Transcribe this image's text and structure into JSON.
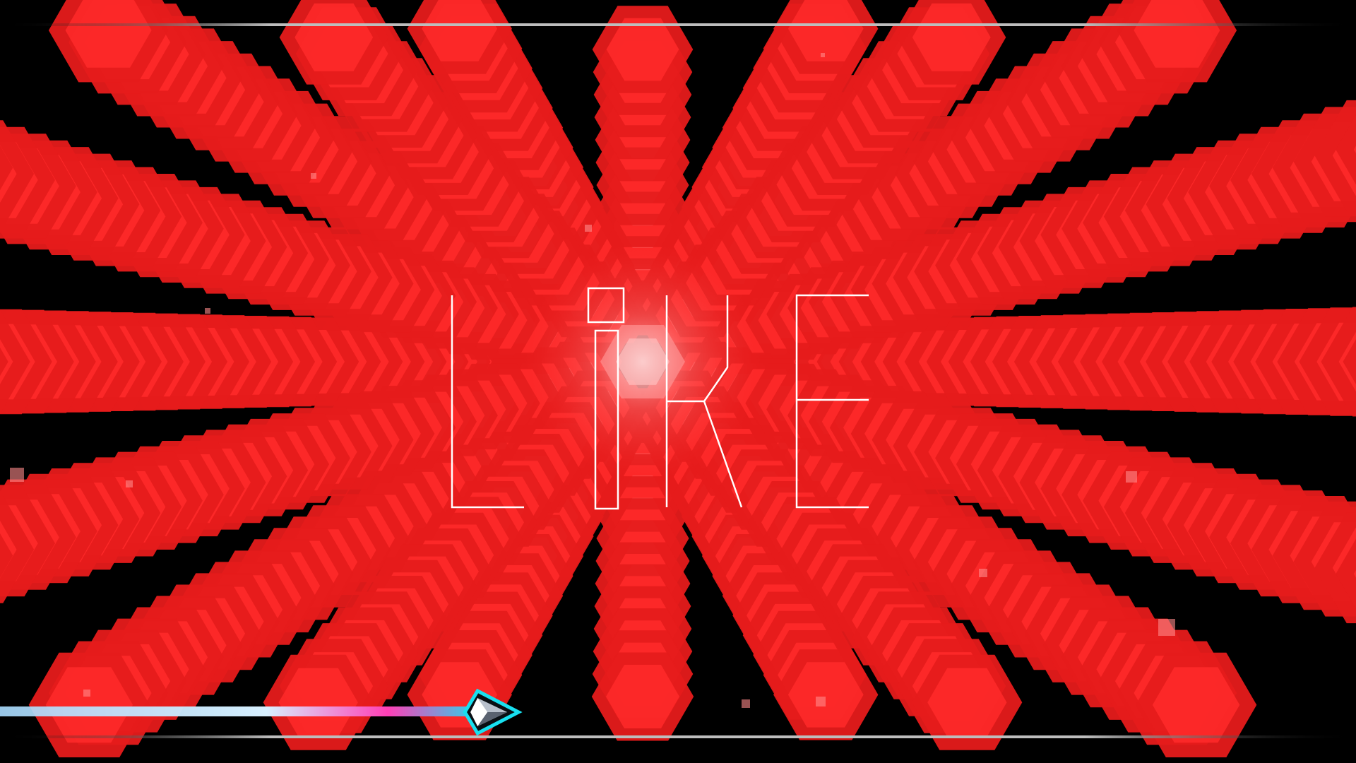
{
  "scene": {
    "lyric_word": "LiKE",
    "palette": {
      "background": "#000000",
      "hexagon_red": "#ff2a2a",
      "hexagon_red_dark": "#e61b1b",
      "hexagon_highlight": "#ff8a8a",
      "glow_core": "#ffd0d0",
      "lyric_outline": "#ffffff",
      "rail": "#bdbdbd",
      "trail_blue": "#a9dcff",
      "trail_magenta": "#ff3fb6",
      "ship_outline": "#18e0f0",
      "ship_body": "#b8c0cc"
    }
  },
  "hud": {
    "progress_fraction": 0.36,
    "player_icon": "ship-arrow-icon"
  }
}
